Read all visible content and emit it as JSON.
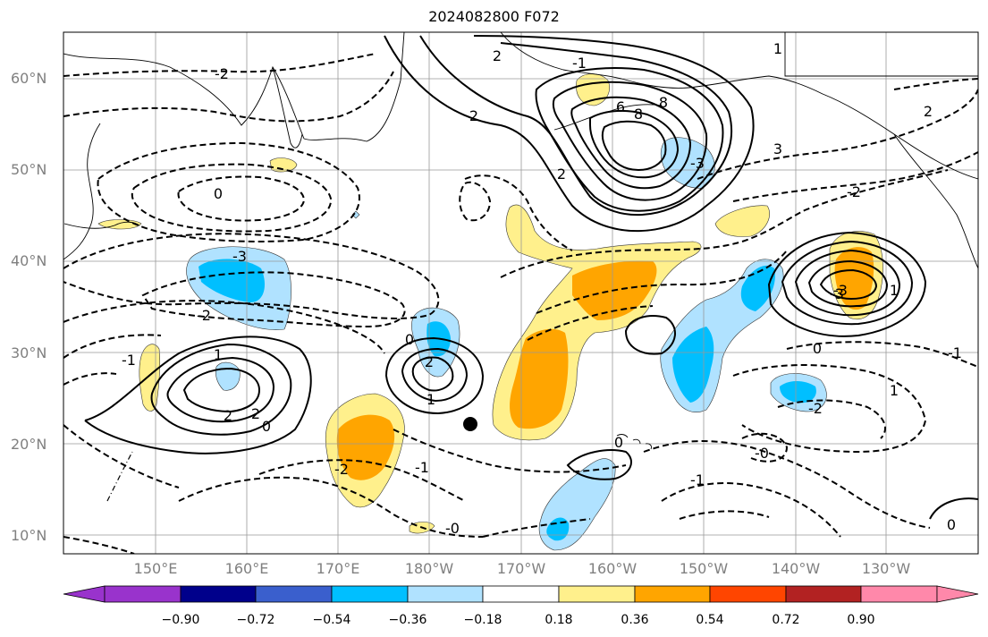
{
  "title": "2024082800 F072",
  "map": {
    "lat_labels": [
      "60°N",
      "50°N",
      "40°N",
      "30°N",
      "20°N",
      "10°N"
    ],
    "lon_labels": [
      "150°E",
      "160°E",
      "170°E",
      "180°W",
      "170°W",
      "160°W",
      "150°W",
      "140°W",
      "130°W"
    ],
    "contour_labels": [
      "2",
      "2",
      "6",
      "8",
      "8",
      "2",
      "1",
      "-1",
      "-3",
      "-3",
      "-2",
      "-3",
      "-2",
      "0",
      "-1",
      "1",
      "2",
      "2",
      "1",
      "2",
      "0",
      "-2",
      "0",
      "3",
      "1",
      "-2",
      "2",
      "0",
      "-3",
      "-1",
      "-2",
      "-1",
      "0",
      "-0",
      "1",
      "-0",
      "0",
      "-1"
    ],
    "marker": "storm-position-dot"
  },
  "colorbar": {
    "ticks": [
      "−0.90",
      "−0.72",
      "−0.54",
      "−0.36",
      "−0.18",
      "0.18",
      "0.36",
      "0.54",
      "0.72",
      "0.90"
    ],
    "colors": [
      "#9933cc",
      "#00008b",
      "#3a5fcd",
      "#00bfff",
      "#b0e2ff",
      "#ffffff",
      "#fff08c",
      "#ffa500",
      "#ff4500",
      "#b22222",
      "#ff88aa"
    ]
  }
}
